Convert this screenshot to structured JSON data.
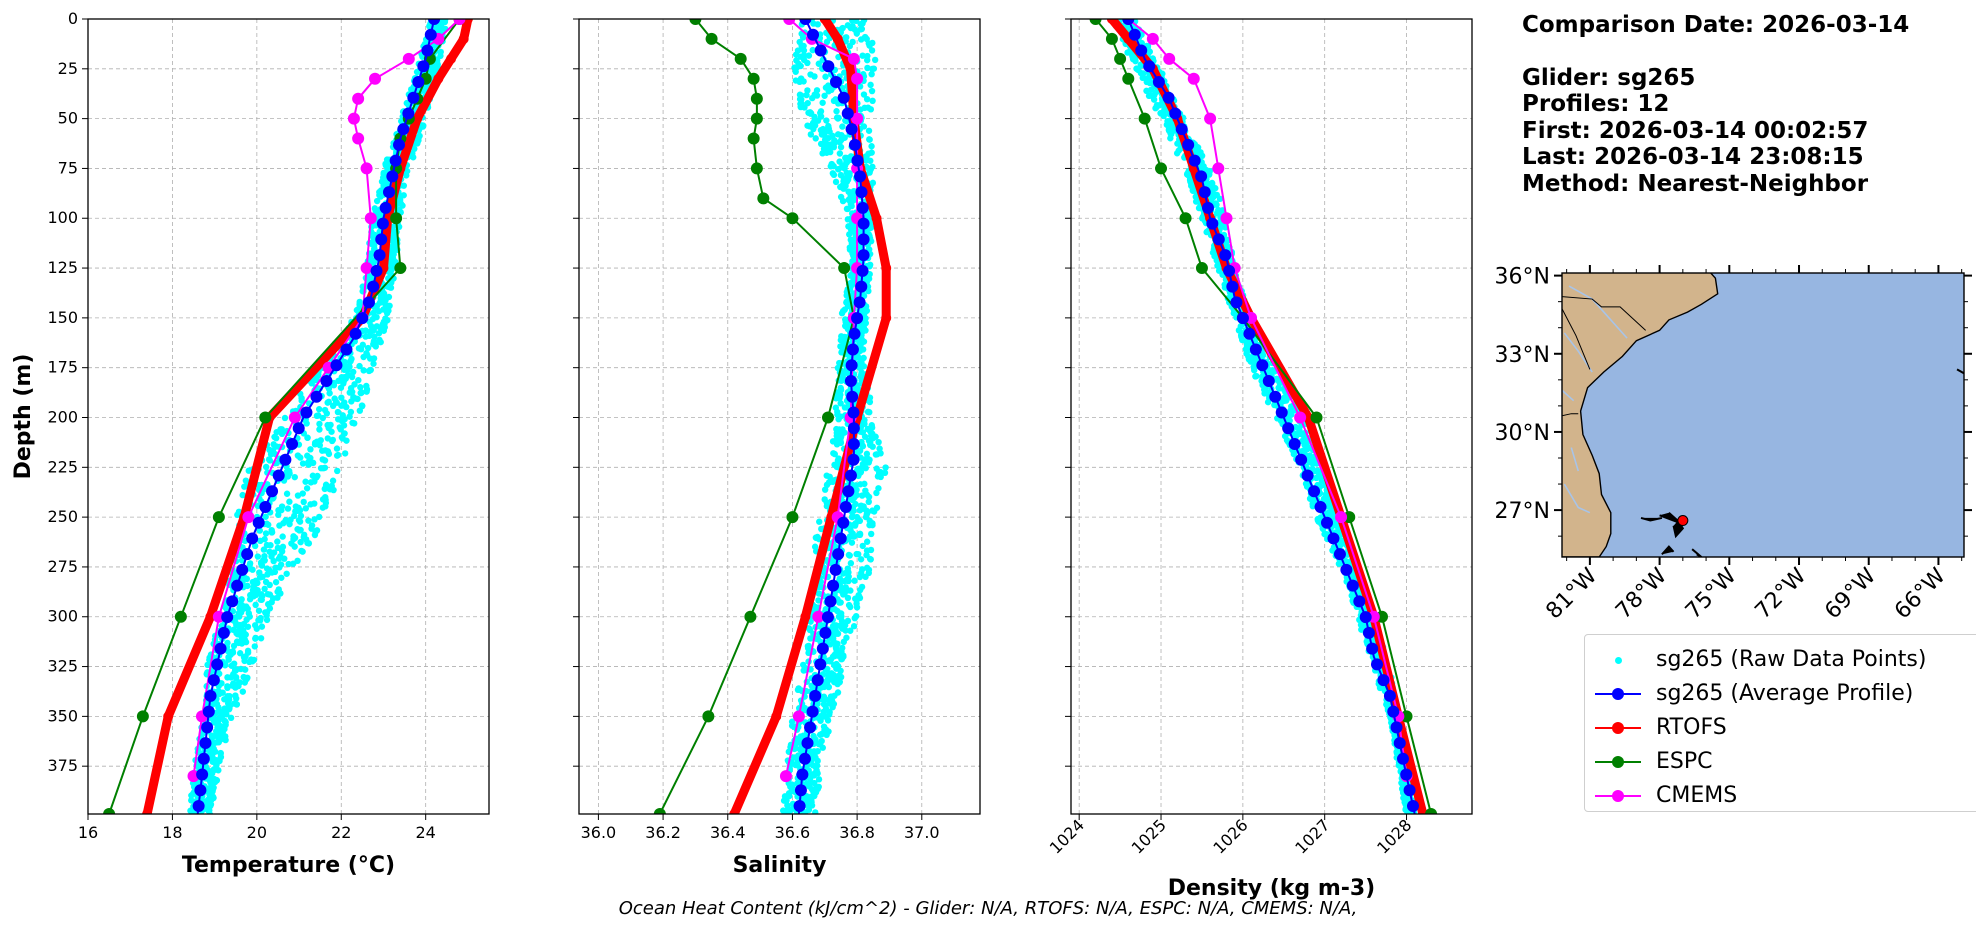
{
  "info": {
    "date_line": "Comparison Date: 2026-03-14",
    "glider_line": "Glider: sg265",
    "profiles_line": "Profiles: 12",
    "first_line": "First: 2026-03-14 00:02:57",
    "last_line": "Last: 2026-03-14 23:08:15",
    "method_line": "Method: Nearest-Neighbor"
  },
  "footer_text": "Ocean Heat Content (kJ/cm^2) - Glider: N/A,  RTOFS: N/A,  ESPC: N/A,  CMEMS: N/A,",
  "legend": [
    {
      "label": "sg265 (Raw Data Points)",
      "color": "#00ffff",
      "style": "points"
    },
    {
      "label": "sg265 (Average Profile)",
      "color": "#0000ff",
      "style": "line-marker"
    },
    {
      "label": "RTOFS",
      "color": "#ff0000",
      "style": "line-marker"
    },
    {
      "label": "ESPC",
      "color": "#008000",
      "style": "line-marker"
    },
    {
      "label": "CMEMS",
      "color": "#ff00ff",
      "style": "line-marker"
    }
  ],
  "colors": {
    "raw": "#00ffff",
    "glider": "#0000ff",
    "rtofs": "#ff0000",
    "espc": "#008000",
    "cmems": "#ff00ff",
    "ocean": "#97b6e1",
    "land": "#d2b48c"
  },
  "chart_data": [
    {
      "type": "line",
      "xlabel": "Temperature (°C)",
      "ylabel": "Depth (m)",
      "xlim": [
        16,
        25.5
      ],
      "ylim": [
        399,
        0
      ],
      "grid": true,
      "xticks": [
        16,
        18,
        20,
        22,
        24
      ],
      "yticks": [
        0,
        25,
        50,
        75,
        100,
        125,
        150,
        175,
        200,
        225,
        250,
        275,
        300,
        325,
        350,
        375
      ],
      "raw_band": {
        "depth": [
          0,
          25,
          50,
          75,
          100,
          125,
          150,
          175,
          200,
          225,
          250,
          275,
          300,
          325,
          350,
          375,
          399
        ],
        "min": [
          24.1,
          23.8,
          23.4,
          23.0,
          22.7,
          22.6,
          22.3,
          21.4,
          20.6,
          19.8,
          19.5,
          19.4,
          19.1,
          18.8,
          18.7,
          18.5,
          18.4
        ],
        "max": [
          24.5,
          24.3,
          24.0,
          23.6,
          23.4,
          23.3,
          23.1,
          22.8,
          22.4,
          22.0,
          21.6,
          20.9,
          20.3,
          19.9,
          19.4,
          19.1,
          18.9
        ]
      },
      "series": [
        {
          "name": "sg265 (Average Profile)",
          "key": "glider",
          "depth": [
            0,
            20,
            40,
            60,
            80,
            100,
            120,
            140,
            160,
            180,
            200,
            220,
            240,
            260,
            280,
            300,
            320,
            340,
            360,
            380,
            399
          ],
          "values": [
            24.2,
            24.0,
            23.7,
            23.4,
            23.2,
            23.0,
            22.9,
            22.7,
            22.3,
            21.7,
            21.1,
            20.7,
            20.3,
            19.9,
            19.6,
            19.3,
            19.1,
            18.9,
            18.8,
            18.7,
            18.6
          ]
        },
        {
          "name": "RTOFS",
          "key": "rtofs",
          "depth": [
            0,
            10,
            20,
            30,
            50,
            75,
            100,
            125,
            150,
            200,
            250,
            300,
            350,
            399
          ],
          "values": [
            25.0,
            24.9,
            24.6,
            24.3,
            23.8,
            23.4,
            23.1,
            23.0,
            22.5,
            20.3,
            19.7,
            18.9,
            17.9,
            17.4
          ]
        },
        {
          "name": "ESPC",
          "key": "espc",
          "depth": [
            0,
            20,
            30,
            40,
            50,
            60,
            75,
            100,
            125,
            200,
            250,
            300,
            350,
            399
          ],
          "values": [
            24.8,
            24.1,
            24.0,
            23.8,
            23.6,
            23.4,
            23.3,
            23.3,
            23.4,
            20.2,
            19.1,
            18.2,
            17.3,
            16.5
          ]
        },
        {
          "name": "CMEMS",
          "key": "cmems",
          "depth": [
            0,
            10,
            20,
            30,
            40,
            50,
            60,
            75,
            100,
            125,
            150,
            175,
            200,
            250,
            300,
            350,
            380
          ],
          "values": [
            24.8,
            24.3,
            23.6,
            22.8,
            22.4,
            22.3,
            22.4,
            22.6,
            22.7,
            22.6,
            22.5,
            21.7,
            20.9,
            19.8,
            19.1,
            18.7,
            18.5
          ]
        }
      ]
    },
    {
      "type": "line",
      "xlabel": "Salinity",
      "xlim": [
        35.94,
        37.18
      ],
      "ylim": [
        399,
        0
      ],
      "grid": true,
      "xticks": [
        36.0,
        36.2,
        36.4,
        36.6,
        36.8,
        37.0
      ],
      "raw_band": {
        "depth": [
          0,
          25,
          50,
          75,
          100,
          125,
          150,
          175,
          200,
          225,
          250,
          275,
          300,
          325,
          350,
          375,
          399
        ],
        "min": [
          36.62,
          36.6,
          36.63,
          36.72,
          36.77,
          36.78,
          36.75,
          36.74,
          36.73,
          36.71,
          36.68,
          36.66,
          36.65,
          36.63,
          36.6,
          36.58,
          36.57
        ],
        "max": [
          36.84,
          36.86,
          36.84,
          36.85,
          36.85,
          36.84,
          36.83,
          36.83,
          36.85,
          36.89,
          36.86,
          36.84,
          36.8,
          36.76,
          36.72,
          36.69,
          36.67
        ]
      },
      "series": [
        {
          "name": "sg265 (Average Profile)",
          "key": "glider",
          "depth": [
            0,
            20,
            40,
            60,
            80,
            100,
            120,
            140,
            160,
            180,
            200,
            220,
            240,
            260,
            280,
            300,
            320,
            340,
            360,
            380,
            399
          ],
          "values": [
            36.64,
            36.7,
            36.76,
            36.79,
            36.81,
            36.82,
            36.82,
            36.81,
            36.79,
            36.78,
            36.79,
            36.79,
            36.77,
            36.75,
            36.73,
            36.71,
            36.69,
            36.67,
            36.65,
            36.63,
            36.62
          ]
        },
        {
          "name": "RTOFS",
          "key": "rtofs",
          "depth": [
            0,
            10,
            25,
            50,
            75,
            100,
            125,
            150,
            200,
            250,
            300,
            350,
            399
          ],
          "values": [
            36.7,
            36.74,
            36.78,
            36.79,
            36.81,
            36.86,
            36.89,
            36.89,
            36.8,
            36.72,
            36.64,
            36.55,
            36.42
          ]
        },
        {
          "name": "ESPC",
          "key": "espc",
          "depth": [
            0,
            10,
            20,
            30,
            40,
            50,
            60,
            75,
            90,
            100,
            125,
            150,
            200,
            250,
            300,
            350,
            399
          ],
          "values": [
            36.3,
            36.35,
            36.44,
            36.48,
            36.49,
            36.49,
            36.48,
            36.49,
            36.51,
            36.6,
            36.76,
            36.79,
            36.71,
            36.6,
            36.47,
            36.34,
            36.19
          ]
        },
        {
          "name": "CMEMS",
          "key": "cmems",
          "depth": [
            0,
            10,
            20,
            30,
            50,
            75,
            100,
            125,
            150,
            200,
            250,
            300,
            350,
            380
          ],
          "values": [
            36.59,
            36.66,
            36.79,
            36.8,
            36.8,
            36.8,
            36.8,
            36.8,
            36.79,
            36.78,
            36.74,
            36.68,
            36.62,
            36.58
          ]
        }
      ]
    },
    {
      "type": "line",
      "xlabel": "Density (kg m-3)",
      "xlim": [
        1023.9,
        1028.8
      ],
      "ylim": [
        399,
        0
      ],
      "grid": true,
      "xticks": [
        1024,
        1025,
        1026,
        1027,
        1028
      ],
      "raw_band": {
        "depth": [
          0,
          25,
          50,
          75,
          100,
          125,
          150,
          175,
          200,
          225,
          250,
          275,
          300,
          325,
          350,
          375,
          399
        ],
        "min": [
          1024.4,
          1024.7,
          1025.0,
          1025.3,
          1025.5,
          1025.7,
          1025.9,
          1026.1,
          1026.4,
          1026.7,
          1026.9,
          1027.2,
          1027.4,
          1027.6,
          1027.8,
          1027.9,
          1028.0
        ],
        "max": [
          1024.7,
          1025.0,
          1025.3,
          1025.6,
          1025.8,
          1025.9,
          1026.1,
          1026.4,
          1026.8,
          1027.0,
          1027.2,
          1027.4,
          1027.6,
          1027.8,
          1027.9,
          1028.0,
          1028.1
        ]
      },
      "series": [
        {
          "name": "sg265 (Average Profile)",
          "key": "glider",
          "depth": [
            0,
            20,
            40,
            60,
            80,
            100,
            120,
            140,
            160,
            180,
            200,
            220,
            240,
            260,
            280,
            300,
            320,
            340,
            360,
            380,
            399
          ],
          "values": [
            1024.6,
            1024.8,
            1025.1,
            1025.3,
            1025.5,
            1025.6,
            1025.8,
            1025.9,
            1026.1,
            1026.3,
            1026.5,
            1026.7,
            1026.9,
            1027.1,
            1027.3,
            1027.5,
            1027.6,
            1027.8,
            1027.9,
            1028.0,
            1028.1
          ]
        },
        {
          "name": "RTOFS",
          "key": "rtofs",
          "depth": [
            0,
            10,
            25,
            50,
            75,
            100,
            125,
            150,
            200,
            250,
            300,
            350,
            399
          ],
          "values": [
            1024.4,
            1024.6,
            1024.9,
            1025.2,
            1025.4,
            1025.6,
            1025.8,
            1026.1,
            1026.8,
            1027.2,
            1027.6,
            1027.9,
            1028.2
          ]
        },
        {
          "name": "ESPC",
          "key": "espc",
          "depth": [
            0,
            10,
            20,
            30,
            50,
            75,
            100,
            125,
            150,
            200,
            250,
            300,
            350,
            399
          ],
          "values": [
            1024.2,
            1024.4,
            1024.5,
            1024.6,
            1024.8,
            1025.0,
            1025.3,
            1025.5,
            1026.0,
            1026.9,
            1027.3,
            1027.7,
            1028.0,
            1028.3
          ]
        },
        {
          "name": "CMEMS",
          "key": "cmems",
          "depth": [
            0,
            10,
            20,
            30,
            50,
            75,
            100,
            125,
            150,
            200,
            250,
            300,
            350,
            380
          ],
          "values": [
            1024.6,
            1024.9,
            1025.1,
            1025.4,
            1025.6,
            1025.7,
            1025.8,
            1025.9,
            1026.1,
            1026.7,
            1027.2,
            1027.6,
            1027.9,
            1028.0
          ]
        }
      ]
    }
  ],
  "map": {
    "lat_ticks": [
      "36°N",
      "33°N",
      "30°N",
      "27°N"
    ],
    "lon_ticks": [
      "81°W",
      "78°W",
      "75°W",
      "72°W",
      "69°W",
      "66°W"
    ],
    "lat_values": [
      36,
      33,
      30,
      27
    ],
    "lon_values": [
      -81,
      -78,
      -75,
      -72,
      -69,
      -66
    ],
    "lon_range": [
      -82.2,
      -64.9
    ],
    "lat_range": [
      25.2,
      36.1
    ],
    "glider_location": {
      "lon": -77.0,
      "lat": 26.6
    }
  }
}
